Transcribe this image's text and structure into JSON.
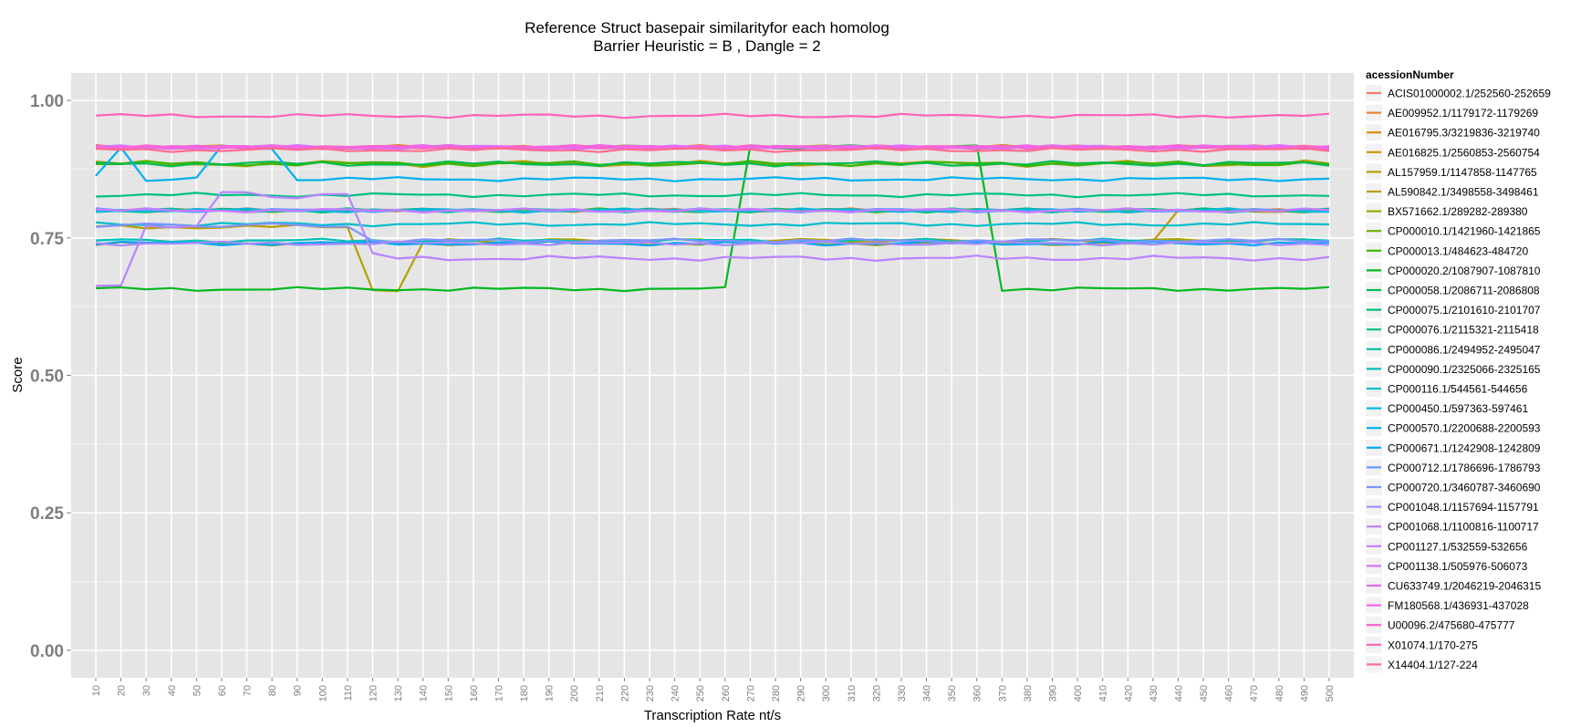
{
  "chart_data": {
    "type": "line",
    "title": "Reference Struct basepair similarityfor each homolog",
    "subtitle": "Barrier Heuristic =  B  , Dangle =  2",
    "xlabel": "Transcription Rate nt/s",
    "ylabel": "Score",
    "ylim": [
      -0.05,
      1.05
    ],
    "y_ticks": [
      0.0,
      0.25,
      0.5,
      0.75,
      1.0
    ],
    "y_tick_labels": [
      "0.00",
      "0.25",
      "0.50",
      "0.75",
      "1.00"
    ],
    "x": [
      10,
      20,
      30,
      40,
      50,
      60,
      70,
      80,
      90,
      100,
      110,
      120,
      130,
      140,
      150,
      160,
      170,
      180,
      190,
      200,
      210,
      220,
      230,
      240,
      250,
      260,
      270,
      280,
      290,
      300,
      310,
      320,
      330,
      340,
      350,
      360,
      370,
      380,
      390,
      400,
      410,
      420,
      430,
      440,
      450,
      460,
      470,
      480,
      490,
      500
    ],
    "x_tick_labels": [
      "10",
      "20",
      "30",
      "40",
      "50",
      "60",
      "70",
      "80",
      "90",
      "100",
      "110",
      "120",
      "130",
      "140",
      "150",
      "160",
      "170",
      "180",
      "190",
      "200",
      "210",
      "220",
      "230",
      "240",
      "250",
      "260",
      "270",
      "280",
      "290",
      "300",
      "310",
      "320",
      "330",
      "340",
      "350",
      "360",
      "370",
      "380",
      "390",
      "400",
      "410",
      "420",
      "430",
      "440",
      "450",
      "460",
      "470",
      "480",
      "490",
      "500"
    ],
    "grid": true,
    "legend_title": "acessionNumber",
    "legend_position": "right",
    "series": [
      {
        "name": "ACIS01000002.1/252560-252659",
        "color": "#F8766D",
        "base": 0.915,
        "jitter": 0.004
      },
      {
        "name": "AE009952.1/1179172-1179269",
        "color": "#EC8239",
        "base": 0.8,
        "jitter": 0.004
      },
      {
        "name": "AE016795.3/3219836-3219740",
        "color": "#DB8E00",
        "base": 0.915,
        "jitter": 0.004
      },
      {
        "name": "AE016825.1/2560853-2560754",
        "color": "#C79800",
        "base": 0.74,
        "jitter": 0.004,
        "segments": [
          {
            "from": 430,
            "to": 440,
            "values": [
              0.745,
              0.8
            ]
          }
        ],
        "overrides": [
          [
            440,
            0.8
          ],
          [
            450,
            0.8
          ],
          [
            460,
            0.8
          ],
          [
            470,
            0.8
          ],
          [
            480,
            0.8
          ],
          [
            490,
            0.8
          ],
          [
            500,
            0.8
          ]
        ]
      },
      {
        "name": "AL157959.1/1147858-1147765",
        "color": "#AFA100",
        "base": 0.885,
        "jitter": 0.006
      },
      {
        "name": "AL590842.1/3498558-3498461",
        "color": "#B79F00",
        "base": 0.77,
        "jitter": 0.004,
        "overrides": [
          [
            120,
            0.658
          ],
          [
            130,
            0.655
          ],
          [
            140,
            0.74
          ],
          [
            150,
            0.745
          ],
          [
            160,
            0.745
          ],
          [
            170,
            0.745
          ],
          [
            180,
            0.745
          ],
          [
            190,
            0.745
          ],
          [
            200,
            0.745
          ],
          [
            210,
            0.745
          ],
          [
            220,
            0.745
          ],
          [
            230,
            0.745
          ],
          [
            240,
            0.745
          ],
          [
            250,
            0.745
          ],
          [
            260,
            0.745
          ],
          [
            270,
            0.745
          ],
          [
            280,
            0.745
          ],
          [
            290,
            0.745
          ],
          [
            300,
            0.745
          ],
          [
            310,
            0.745
          ],
          [
            320,
            0.745
          ],
          [
            330,
            0.745
          ],
          [
            340,
            0.745
          ],
          [
            350,
            0.745
          ],
          [
            360,
            0.745
          ],
          [
            370,
            0.745
          ],
          [
            380,
            0.745
          ],
          [
            390,
            0.745
          ],
          [
            400,
            0.745
          ],
          [
            410,
            0.745
          ],
          [
            420,
            0.745
          ],
          [
            430,
            0.745
          ],
          [
            440,
            0.745
          ],
          [
            450,
            0.745
          ],
          [
            460,
            0.745
          ],
          [
            470,
            0.745
          ],
          [
            480,
            0.745
          ],
          [
            490,
            0.745
          ],
          [
            500,
            0.745
          ]
        ]
      },
      {
        "name": "BX571662.1/289282-289380",
        "color": "#94AA00",
        "base": 0.915,
        "jitter": 0.004
      },
      {
        "name": "CP000010.1/1421960-1421865",
        "color": "#72B000",
        "base": 0.8,
        "jitter": 0.004
      },
      {
        "name": "CP000013.1/484623-484720",
        "color": "#3FB500",
        "base": 0.885,
        "jitter": 0.005
      },
      {
        "name": "CP000020.2/1087907-1087810",
        "color": "#00B81F",
        "base": 0.657,
        "jitter": 0.004,
        "overrides": [
          [
            270,
            0.915
          ],
          [
            280,
            0.915
          ],
          [
            290,
            0.915
          ],
          [
            300,
            0.915
          ],
          [
            310,
            0.915
          ],
          [
            320,
            0.915
          ],
          [
            330,
            0.915
          ],
          [
            340,
            0.915
          ],
          [
            350,
            0.915
          ],
          [
            360,
            0.915
          ]
        ]
      },
      {
        "name": "CP000058.1/2086711-2086808",
        "color": "#00BB4E",
        "base": 0.885,
        "jitter": 0.005
      },
      {
        "name": "CP000075.1/2101610-2101707",
        "color": "#00BE6C",
        "base": 0.8,
        "jitter": 0.004
      },
      {
        "name": "CP000076.1/2115321-2115418",
        "color": "#00C087",
        "base": 0.828,
        "jitter": 0.004
      },
      {
        "name": "CP000086.1/2494952-2495047",
        "color": "#00C1A0",
        "base": 0.8,
        "jitter": 0.004
      },
      {
        "name": "CP000090.1/2325066-2325165",
        "color": "#00C0B7",
        "base": 0.745,
        "jitter": 0.004
      },
      {
        "name": "CP000116.1/544561-544656",
        "color": "#00BDCC",
        "base": 0.775,
        "jitter": 0.004
      },
      {
        "name": "CP000450.1/597363-597461",
        "color": "#00B8DF",
        "base": 0.8,
        "jitter": 0.004
      },
      {
        "name": "CP000570.1/2200688-2200593",
        "color": "#00B0EF",
        "base": 0.857,
        "jitter": 0.004,
        "overrides": [
          [
            10,
            0.86
          ],
          [
            20,
            0.915
          ],
          [
            30,
            0.857
          ],
          [
            40,
            0.857
          ],
          [
            50,
            0.857
          ],
          [
            60,
            0.915
          ],
          [
            70,
            0.915
          ],
          [
            80,
            0.915
          ]
        ]
      },
      {
        "name": "CP000671.1/1242908-1242809",
        "color": "#00A6FC",
        "base": 0.74,
        "jitter": 0.004
      },
      {
        "name": "CP000712.1/1786696-1786793",
        "color": "#619CFF",
        "base": 0.8,
        "jitter": 0.004
      },
      {
        "name": "CP000720.1/3460787-3460690",
        "color": "#7E93FF",
        "base": 0.745,
        "jitter": 0.004,
        "overrides": [
          [
            10,
            0.773
          ],
          [
            20,
            0.773
          ],
          [
            30,
            0.773
          ],
          [
            40,
            0.773
          ],
          [
            50,
            0.773
          ],
          [
            60,
            0.773
          ],
          [
            70,
            0.773
          ],
          [
            80,
            0.773
          ],
          [
            90,
            0.773
          ],
          [
            100,
            0.773
          ],
          [
            110,
            0.773
          ]
        ]
      },
      {
        "name": "CP001048.1/1157694-1157791",
        "color": "#A58AFF",
        "base": 0.74,
        "jitter": 0.004
      },
      {
        "name": "CP001068.1/1100816-1100717",
        "color": "#B983FF",
        "base": 0.713,
        "jitter": 0.005,
        "overrides": [
          [
            10,
            0.66
          ],
          [
            20,
            0.66
          ],
          [
            30,
            0.773
          ],
          [
            40,
            0.773
          ],
          [
            50,
            0.773
          ],
          [
            60,
            0.83
          ],
          [
            70,
            0.83
          ],
          [
            80,
            0.826
          ],
          [
            90,
            0.826
          ],
          [
            100,
            0.83
          ],
          [
            110,
            0.826
          ],
          [
            120,
            0.72
          ]
        ]
      },
      {
        "name": "CP001127.1/532559-532656",
        "color": "#C77CFF",
        "base": 0.8,
        "jitter": 0.004
      },
      {
        "name": "CP001138.1/505976-506073",
        "color": "#DC71FA",
        "base": 0.915,
        "jitter": 0.004
      },
      {
        "name": "CU633749.1/2046219-2046315",
        "color": "#E76BF3",
        "base": 0.915,
        "jitter": 0.004
      },
      {
        "name": "FM180568.1/436931-437028",
        "color": "#F066EA",
        "base": 0.915,
        "jitter": 0.004
      },
      {
        "name": "U00096.2/475680-475777",
        "color": "#F864D3",
        "base": 0.915,
        "jitter": 0.004
      },
      {
        "name": "X01074.1/170-275",
        "color": "#FF63B6",
        "base": 0.972,
        "jitter": 0.004
      },
      {
        "name": "X14404.1/127-224",
        "color": "#FF6C91",
        "base": 0.91,
        "jitter": 0.004
      }
    ]
  },
  "colors": {
    "panel_background": "#E5E5E5",
    "grid_major": "#FFFFFF",
    "grid_minor": "#F2F2F2"
  }
}
